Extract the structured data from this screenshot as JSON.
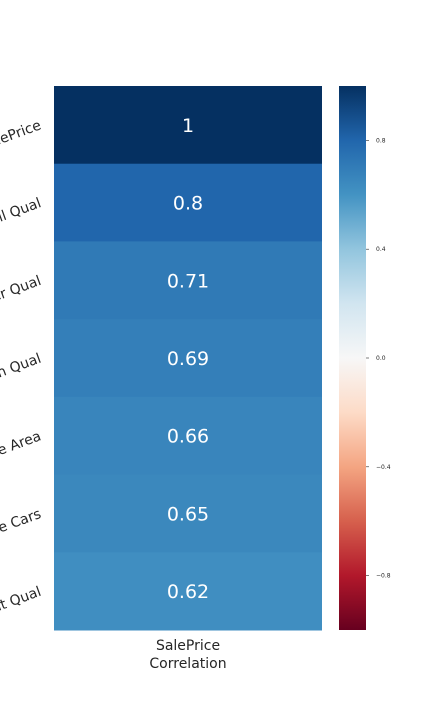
{
  "chart_data": {
    "type": "heatmap",
    "rows": [
      "SalePrice",
      "Overall Qual",
      "Exter Qual",
      "Kitchen Qual",
      "Garage Area",
      "Garage Cars",
      "Basement Qual"
    ],
    "columns": [
      "SalePrice Correlation"
    ],
    "x_tick_label_lines": [
      "SalePrice",
      "Correlation"
    ],
    "values": [
      1,
      0.8,
      0.71,
      0.69,
      0.66,
      0.65,
      0.62
    ],
    "value_labels": [
      "1",
      "0.8",
      "0.71",
      "0.69",
      "0.66",
      "0.65",
      "0.62"
    ],
    "colormap": "RdBu",
    "colorbar_range": [
      -1,
      1
    ],
    "colorbar_ticks": [
      0.8,
      0.4,
      0.0,
      -0.4,
      -0.8
    ],
    "colorbar_tick_labels": [
      "0.8",
      "0.4",
      "0.0",
      "−0.4",
      "−0.8"
    ],
    "colormap_stops": [
      "#67001f",
      "#b2182b",
      "#d6604d",
      "#f4a582",
      "#fddbc7",
      "#f7f7f7",
      "#d1e5f0",
      "#92c5de",
      "#4393c3",
      "#2166ac",
      "#053061"
    ],
    "grid": false
  }
}
